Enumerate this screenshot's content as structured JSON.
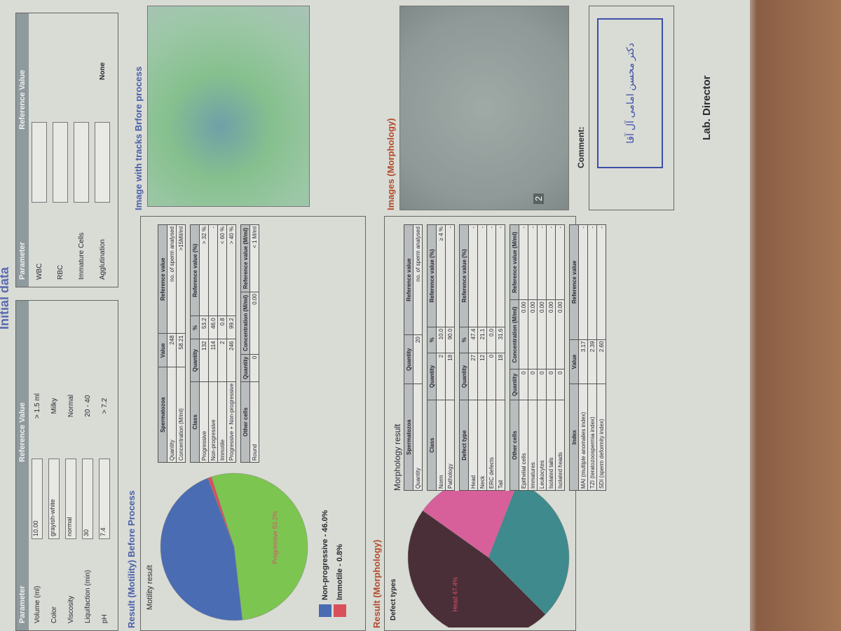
{
  "title": "Initial data",
  "initial": {
    "left": {
      "headers": [
        "Parameter",
        "Reference Value"
      ],
      "rows": [
        [
          "Volume (ml)",
          "10.00",
          "> 1.5 ml"
        ],
        [
          "Color",
          "grayish-white",
          "Milky"
        ],
        [
          "Viscosity",
          "normal",
          "Normal"
        ],
        [
          "Liquifaction (min)",
          "30",
          "20 - 40"
        ],
        [
          "pH",
          "7.4",
          "> 7.2"
        ]
      ]
    },
    "right": {
      "headers": [
        "Parameter",
        "Reference Value"
      ],
      "rows": [
        "WBC",
        "RBC",
        "Immature Cells",
        "Agglutination"
      ],
      "reference": "None"
    }
  },
  "motility": {
    "section_title": "Result (Motility) Before Process",
    "chart_title": "Motility result",
    "pie": {
      "slices": [
        {
          "value": 53.2,
          "color": "#7cc551",
          "label": "Progressive 53.2%"
        },
        {
          "value": 46.0,
          "color": "#4a6cb3"
        },
        {
          "value": 0.8,
          "color": "#d9505a"
        }
      ]
    },
    "legend": [
      {
        "text": "Non-progressive - 46.0%",
        "color": "#4a6cb3"
      },
      {
        "text": "Immotile - 0.8%",
        "color": "#d9505a"
      }
    ],
    "table": [
      {
        "header": [
          "Spermatozoa",
          "Value",
          "Reference value"
        ],
        "rows": [
          [
            "Quantity",
            "248",
            "no. of sperm analysed"
          ],
          [
            "Concentration (M/ml)",
            "58.21",
            ">15Mil/ml"
          ]
        ]
      },
      {
        "header": [
          "Class",
          "Quantity",
          "%",
          "Reference value (%)"
        ],
        "rows": [
          [
            "Progressive",
            "132",
            "53.2",
            "> 32 %"
          ],
          [
            "Non-progressive",
            "114",
            "46.0",
            "-"
          ],
          [
            "Immotile",
            "2",
            "0.8",
            "< 60 %"
          ],
          [
            "Progressive + Non-progressive",
            "246",
            "99.2",
            "> 40 %"
          ]
        ]
      },
      {
        "header": [
          "Other cells",
          "Quantity",
          "Concentration (M/ml)",
          "Reference value (M/ml)"
        ],
        "rows": [
          [
            "Round",
            "0",
            "0.00",
            "< 1 M/ml"
          ]
        ]
      }
    ]
  },
  "tracks_title": "Image with tracks Brfore process",
  "morphology": {
    "section_title": "Result (Morphology)",
    "chart_title": "Defect types",
    "table_title": "Morphology result",
    "pie": {
      "slices": [
        {
          "value": 47.4,
          "color": "#4b2f38",
          "label": "Head 47.4%"
        },
        {
          "value": 21.1,
          "color": "#d7609a"
        },
        {
          "value": 31.6,
          "color": "#3f8a8c"
        }
      ]
    },
    "table": [
      {
        "header": [
          "Spermatozoa",
          "Quantity",
          "Reference value"
        ],
        "rows": [
          [
            "Quantity",
            "20",
            "no. of sperm analysed"
          ]
        ]
      },
      {
        "header": [
          "Class",
          "Quantity",
          "%",
          "Reference value (%)"
        ],
        "rows": [
          [
            "Norm",
            "2",
            "10.0",
            "≥ 4 %"
          ],
          [
            "Pathology",
            "18",
            "90.0",
            "-"
          ]
        ]
      },
      {
        "header": [
          "Defect type",
          "Quantity",
          "%",
          "Reference value (%)"
        ],
        "rows": [
          [
            "Head",
            "27",
            "47.4",
            "-"
          ],
          [
            "Neck",
            "12",
            "21.1",
            "-"
          ],
          [
            "ERC defects",
            "0",
            "0.0",
            "-"
          ],
          [
            "Tail",
            "18",
            "31.6",
            "-"
          ]
        ]
      },
      {
        "header": [
          "Other cells",
          "Quantity",
          "Concentration (M/ml)",
          "Reference value (M/ml)"
        ],
        "rows": [
          [
            "Epithelial cells",
            "0",
            "0.00",
            "-"
          ],
          [
            "Immatures",
            "0",
            "0.00",
            "-"
          ],
          [
            "Leukocytes",
            "0",
            "0.00",
            "-"
          ],
          [
            "Isolated tails",
            "0",
            "0.00",
            "-"
          ],
          [
            "Isolated heads",
            "0",
            "0.00",
            "-"
          ]
        ]
      },
      {
        "header": [
          "Index",
          "Value",
          "Reference value"
        ],
        "rows": [
          [
            "MAI (multiple anomalies index)",
            "3.17",
            "-"
          ],
          [
            "TZI (teratozoospermia index)",
            "2.39",
            "-"
          ],
          [
            "SDI (sperm deformity index)",
            "2.60",
            "-"
          ]
        ]
      }
    ]
  },
  "images_title": "Images (Morphology)",
  "image_counter": "2",
  "comment": "Comment:",
  "stamp": "دکتر محسن امامی آل آقا",
  "signature_title": "Lab. Director"
}
